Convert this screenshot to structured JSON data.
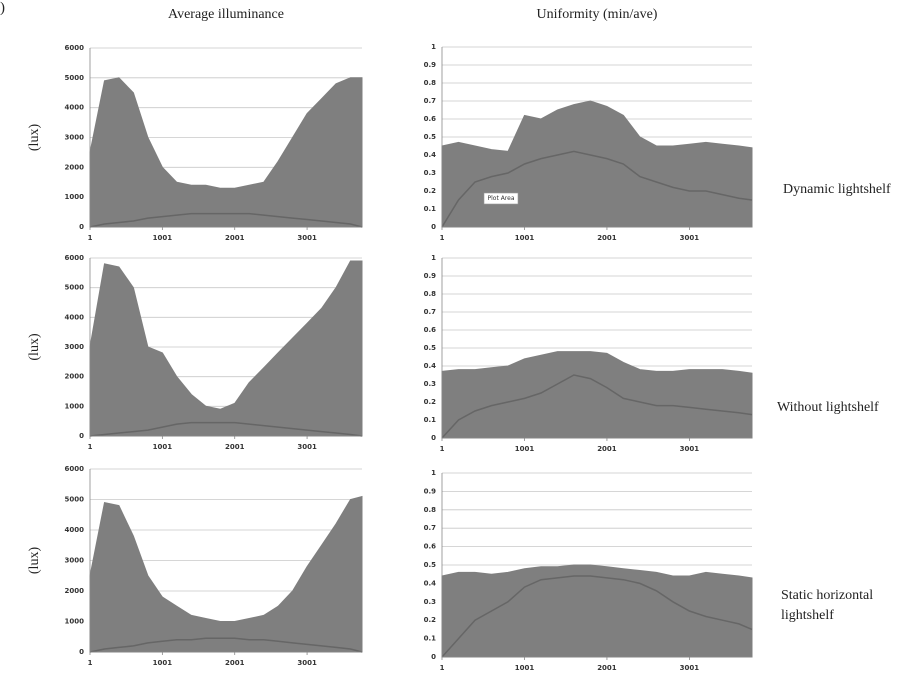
{
  "panel_label": ")",
  "chart_data": [
    {
      "type": "area",
      "title": "Average illuminance",
      "ylabel": "(lux)",
      "x": [
        1,
        201,
        401,
        601,
        801,
        1001,
        1201,
        1401,
        1601,
        1801,
        2001,
        2201,
        2401,
        2601,
        2801,
        3001,
        3201,
        3401,
        3601,
        3760
      ],
      "series": [
        {
          "color": "#7f7f7f",
          "values": [
            2500,
            4900,
            5000,
            4500,
            3000,
            2000,
            1500,
            1400,
            1400,
            1300,
            1300,
            1400,
            1500,
            2200,
            3000,
            3800,
            4300,
            4800,
            5000,
            5000
          ]
        },
        {
          "color": "#666666",
          "values": [
            0,
            100,
            150,
            200,
            300,
            350,
            400,
            450,
            450,
            450,
            450,
            450,
            400,
            350,
            300,
            250,
            200,
            150,
            100,
            0
          ]
        }
      ],
      "xlim": [
        1,
        3760
      ],
      "ylim": [
        0,
        6000
      ],
      "xticks": [
        1,
        1001,
        2001,
        3001
      ],
      "yticks": [
        0,
        1000,
        2000,
        3000,
        4000,
        5000,
        6000
      ],
      "grid": true
    },
    {
      "type": "area",
      "ylabel": "(lux)",
      "x": [
        1,
        201,
        401,
        601,
        801,
        1001,
        1201,
        1401,
        1601,
        1801,
        2001,
        2201,
        2401,
        2601,
        2801,
        3001,
        3201,
        3401,
        3601,
        3760
      ],
      "series": [
        {
          "color": "#7f7f7f",
          "values": [
            3000,
            5800,
            5700,
            5000,
            3000,
            2800,
            2000,
            1400,
            1000,
            900,
            1100,
            1800,
            2300,
            2800,
            3300,
            3800,
            4300,
            5000,
            5900,
            5900
          ]
        },
        {
          "color": "#666666",
          "values": [
            0,
            50,
            100,
            150,
            200,
            300,
            400,
            450,
            450,
            450,
            450,
            400,
            350,
            300,
            250,
            200,
            150,
            100,
            50,
            0
          ]
        }
      ],
      "xlim": [
        1,
        3760
      ],
      "ylim": [
        0,
        6000
      ],
      "xticks": [
        1,
        1001,
        2001,
        3001
      ],
      "yticks": [
        0,
        1000,
        2000,
        3000,
        4000,
        5000,
        6000
      ],
      "grid": true
    },
    {
      "type": "area",
      "ylabel": "(lux)",
      "x": [
        1,
        201,
        401,
        601,
        801,
        1001,
        1201,
        1401,
        1601,
        1801,
        2001,
        2201,
        2401,
        2601,
        2801,
        3001,
        3201,
        3401,
        3601,
        3760
      ],
      "series": [
        {
          "color": "#7f7f7f",
          "values": [
            2500,
            4900,
            4800,
            3800,
            2500,
            1800,
            1500,
            1200,
            1100,
            1000,
            1000,
            1100,
            1200,
            1500,
            2000,
            2800,
            3500,
            4200,
            5000,
            5100
          ]
        },
        {
          "color": "#666666",
          "values": [
            0,
            100,
            150,
            200,
            300,
            350,
            400,
            400,
            450,
            450,
            450,
            400,
            400,
            350,
            300,
            250,
            200,
            150,
            100,
            0
          ]
        }
      ],
      "xlim": [
        1,
        3760
      ],
      "ylim": [
        0,
        6000
      ],
      "xticks": [
        1,
        1001,
        2001,
        3001
      ],
      "yticks": [
        0,
        1000,
        2000,
        3000,
        4000,
        5000,
        6000
      ],
      "grid": true
    },
    {
      "type": "area",
      "title": "Uniformity (min/ave)",
      "annotation": "Dynamic lightshelf",
      "tooltip": "Plot Area",
      "x": [
        1,
        201,
        401,
        601,
        801,
        1001,
        1201,
        1401,
        1601,
        1801,
        2001,
        2201,
        2401,
        2601,
        2801,
        3001,
        3201,
        3401,
        3601,
        3760
      ],
      "series": [
        {
          "color": "#7f7f7f",
          "values": [
            0.45,
            0.47,
            0.45,
            0.43,
            0.42,
            0.62,
            0.6,
            0.65,
            0.68,
            0.7,
            0.67,
            0.62,
            0.5,
            0.45,
            0.45,
            0.46,
            0.47,
            0.46,
            0.45,
            0.44
          ]
        },
        {
          "color": "#666666",
          "values": [
            0,
            0.15,
            0.25,
            0.28,
            0.3,
            0.35,
            0.38,
            0.4,
            0.42,
            0.4,
            0.38,
            0.35,
            0.28,
            0.25,
            0.22,
            0.2,
            0.2,
            0.18,
            0.16,
            0.15
          ]
        }
      ],
      "xlim": [
        1,
        3760
      ],
      "ylim": [
        0,
        1
      ],
      "xticks": [
        1,
        1001,
        2001,
        3001
      ],
      "yticks": [
        0,
        0.1,
        0.2,
        0.3,
        0.4,
        0.5,
        0.6,
        0.7,
        0.8,
        0.9,
        1
      ],
      "grid": true
    },
    {
      "type": "area",
      "annotation": "Without lightshelf",
      "x": [
        1,
        201,
        401,
        601,
        801,
        1001,
        1201,
        1401,
        1601,
        1801,
        2001,
        2201,
        2401,
        2601,
        2801,
        3001,
        3201,
        3401,
        3601,
        3760
      ],
      "series": [
        {
          "color": "#7f7f7f",
          "values": [
            0.37,
            0.38,
            0.38,
            0.39,
            0.4,
            0.44,
            0.46,
            0.48,
            0.48,
            0.48,
            0.47,
            0.42,
            0.38,
            0.37,
            0.37,
            0.38,
            0.38,
            0.38,
            0.37,
            0.36
          ]
        },
        {
          "color": "#666666",
          "values": [
            0,
            0.1,
            0.15,
            0.18,
            0.2,
            0.22,
            0.25,
            0.3,
            0.35,
            0.33,
            0.28,
            0.22,
            0.2,
            0.18,
            0.18,
            0.17,
            0.16,
            0.15,
            0.14,
            0.13
          ]
        }
      ],
      "xlim": [
        1,
        3760
      ],
      "ylim": [
        0,
        1
      ],
      "xticks": [
        1,
        1001,
        2001,
        3001
      ],
      "yticks": [
        0,
        0.1,
        0.2,
        0.3,
        0.4,
        0.5,
        0.6,
        0.7,
        0.8,
        0.9,
        1
      ],
      "grid": true
    },
    {
      "type": "area",
      "annotation": "Static horizontal lightshelf",
      "x": [
        1,
        201,
        401,
        601,
        801,
        1001,
        1201,
        1401,
        1601,
        1801,
        2001,
        2201,
        2401,
        2601,
        2801,
        3001,
        3201,
        3401,
        3601,
        3760
      ],
      "series": [
        {
          "color": "#7f7f7f",
          "values": [
            0.44,
            0.46,
            0.46,
            0.45,
            0.46,
            0.48,
            0.49,
            0.49,
            0.5,
            0.5,
            0.49,
            0.48,
            0.47,
            0.46,
            0.44,
            0.44,
            0.46,
            0.45,
            0.44,
            0.43
          ]
        },
        {
          "color": "#666666",
          "values": [
            0,
            0.1,
            0.2,
            0.25,
            0.3,
            0.38,
            0.42,
            0.43,
            0.44,
            0.44,
            0.43,
            0.42,
            0.4,
            0.36,
            0.3,
            0.25,
            0.22,
            0.2,
            0.18,
            0.15
          ]
        }
      ],
      "xlim": [
        1,
        3760
      ],
      "ylim": [
        0,
        1
      ],
      "xticks": [
        1,
        1001,
        2001,
        3001
      ],
      "yticks": [
        0,
        0.1,
        0.2,
        0.3,
        0.4,
        0.5,
        0.6,
        0.7,
        0.8,
        0.9,
        1
      ],
      "grid": true
    }
  ]
}
